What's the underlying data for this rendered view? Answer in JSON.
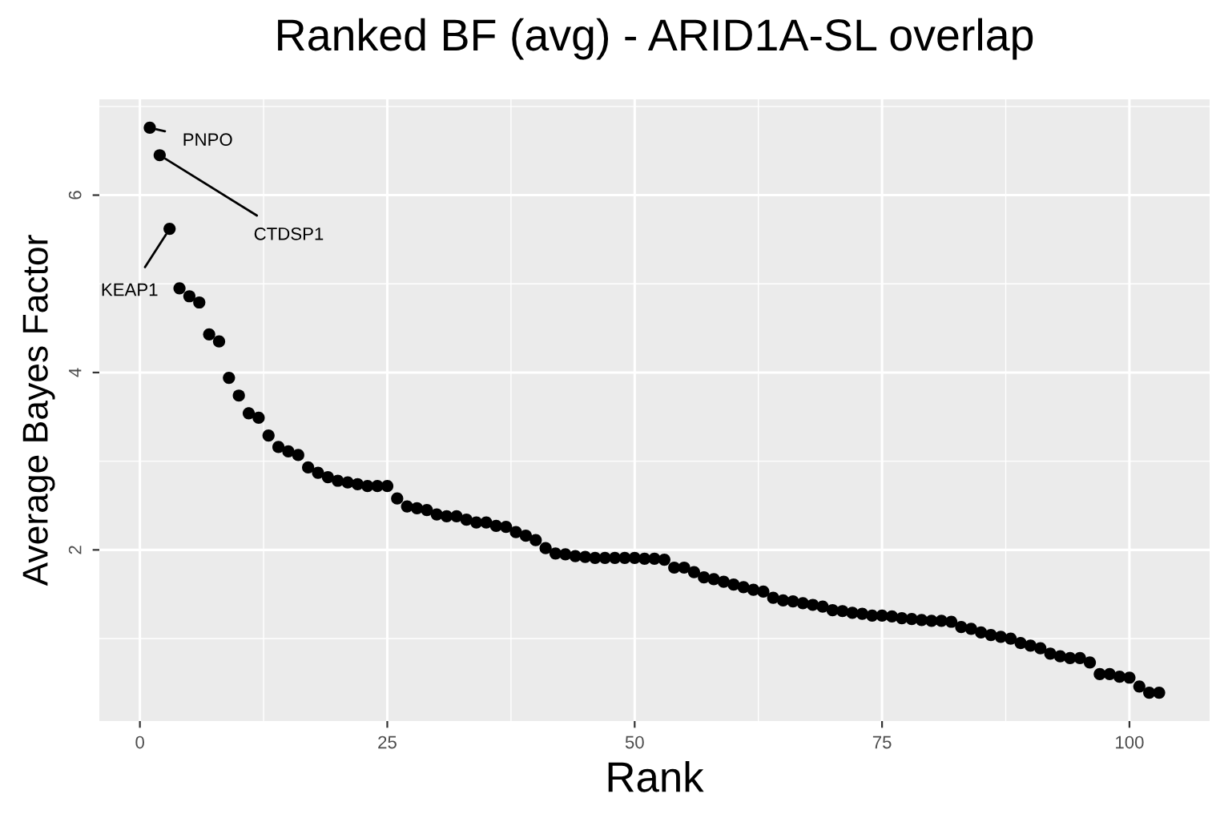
{
  "chart_data": {
    "type": "scatter",
    "title": "Ranked BF (avg) - ARID1A-SL overlap",
    "xlabel": "Rank",
    "ylabel": "Average Bayes Factor",
    "x": [
      1,
      2,
      3,
      4,
      5,
      6,
      7,
      8,
      9,
      10,
      11,
      12,
      13,
      14,
      15,
      16,
      17,
      18,
      19,
      20,
      21,
      22,
      23,
      24,
      25,
      26,
      27,
      28,
      29,
      30,
      31,
      32,
      33,
      34,
      35,
      36,
      37,
      38,
      39,
      40,
      41,
      42,
      43,
      44,
      45,
      46,
      47,
      48,
      49,
      50,
      51,
      52,
      53,
      54,
      55,
      56,
      57,
      58,
      59,
      60,
      61,
      62,
      63,
      64,
      65,
      66,
      67,
      68,
      69,
      70,
      71,
      72,
      73,
      74,
      75,
      76,
      77,
      78,
      79,
      80,
      81,
      82,
      83,
      84,
      85,
      86,
      87,
      88,
      89,
      90,
      91,
      92,
      93,
      94,
      95,
      96,
      97,
      98,
      99,
      100,
      101,
      102,
      103
    ],
    "series": [
      {
        "color": "#000000",
        "values": [
          6.76,
          6.45,
          5.62,
          4.95,
          4.86,
          4.79,
          4.43,
          4.35,
          3.94,
          3.74,
          3.54,
          3.49,
          3.29,
          3.16,
          3.11,
          3.07,
          2.93,
          2.87,
          2.82,
          2.78,
          2.76,
          2.74,
          2.72,
          2.72,
          2.72,
          2.58,
          2.49,
          2.47,
          2.45,
          2.4,
          2.38,
          2.38,
          2.34,
          2.31,
          2.31,
          2.27,
          2.26,
          2.2,
          2.16,
          2.11,
          2.02,
          1.96,
          1.95,
          1.93,
          1.92,
          1.91,
          1.91,
          1.91,
          1.91,
          1.91,
          1.9,
          1.9,
          1.89,
          1.8,
          1.8,
          1.75,
          1.69,
          1.67,
          1.64,
          1.61,
          1.58,
          1.55,
          1.53,
          1.46,
          1.43,
          1.42,
          1.4,
          1.38,
          1.36,
          1.32,
          1.31,
          1.29,
          1.28,
          1.26,
          1.26,
          1.25,
          1.23,
          1.22,
          1.21,
          1.2,
          1.2,
          1.19,
          1.13,
          1.11,
          1.07,
          1.04,
          1.02,
          1.0,
          0.95,
          0.92,
          0.89,
          0.83,
          0.8,
          0.78,
          0.78,
          0.73,
          0.6,
          0.6,
          0.57,
          0.56,
          0.46,
          0.39,
          0.39
        ]
      }
    ],
    "annotations": [
      {
        "text": "PNPO",
        "x": 1,
        "y": 6.76
      },
      {
        "text": "CTDSP1",
        "x": 2,
        "y": 6.45
      },
      {
        "text": "KEAP1",
        "x": 3,
        "y": 5.62
      }
    ],
    "marker": "circle",
    "grid": true,
    "legend": false,
    "xlim": [
      -4.1,
      108.1
    ],
    "ylim": [
      0.07,
      7.08
    ],
    "xticks": [
      0,
      {
        "value": 12.5,
        "label": null
      },
      25,
      {
        "value": 37.5,
        "label": null
      },
      50,
      {
        "value": 62.5,
        "label": null
      },
      75,
      {
        "value": 87.5,
        "label": null
      },
      100
    ],
    "yticks": [
      {
        "value": 1,
        "label": null
      },
      2,
      {
        "value": 3,
        "label": null
      },
      4,
      {
        "value": 5,
        "label": null
      },
      6,
      {
        "value": 7,
        "label": null
      }
    ]
  }
}
